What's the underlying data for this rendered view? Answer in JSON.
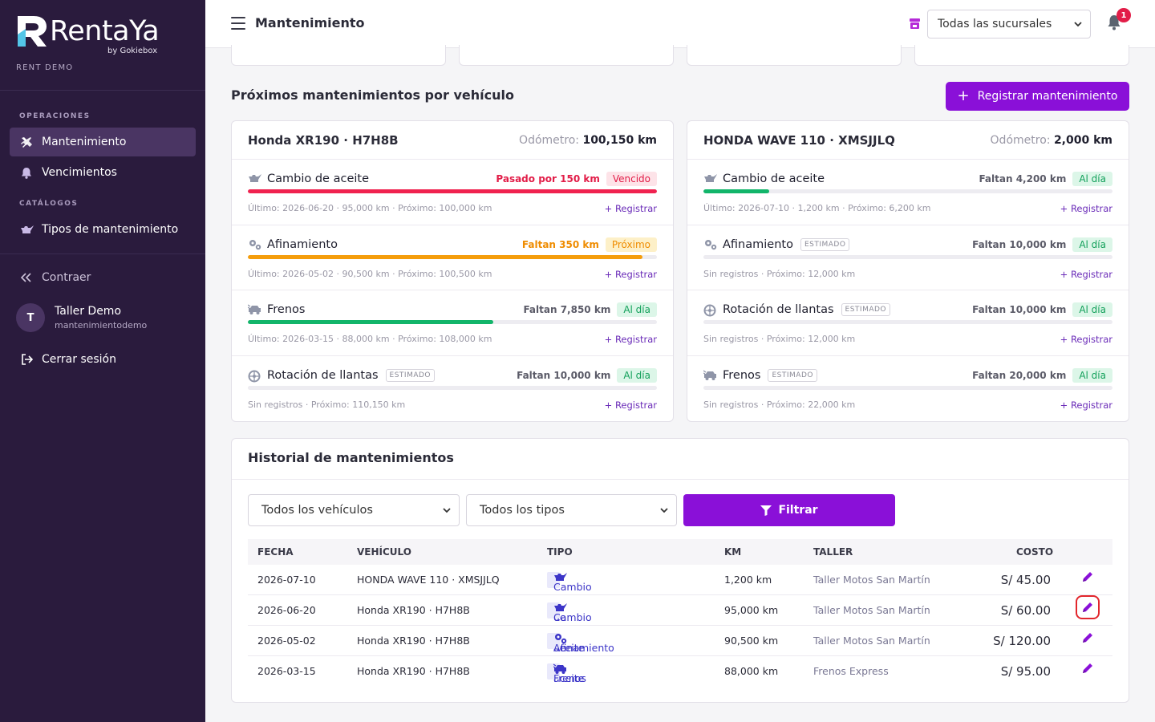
{
  "brand": {
    "name": "RentaYa",
    "by": "by Gokiebox",
    "tenant": "RENT DEMO"
  },
  "sidebar": {
    "section_ops": "OPERACIONES",
    "section_cat": "CATÁLOGOS",
    "items": [
      {
        "label": "Mantenimiento",
        "icon": "tools-icon",
        "active": true
      },
      {
        "label": "Vencimientos",
        "icon": "bell-icon"
      },
      {
        "label": "Tipos de mantenimiento",
        "icon": "oil-can-icon"
      }
    ],
    "collapse_label": "Contraer",
    "user": {
      "initial": "T",
      "name": "Taller Demo",
      "username": "mantenimientodemo"
    },
    "logout_label": "Cerrar sesión"
  },
  "topbar": {
    "title": "Mantenimiento",
    "branch_selected": "Todas las sucursales",
    "notifications": "1"
  },
  "upcoming": {
    "title": "Próximos mantenimientos por vehículo",
    "register_button": "Registrar mantenimiento",
    "register_link": "Registrar",
    "estimated_label": "ESTIMADO",
    "odometer_label": "Odómetro:",
    "vehicles": [
      {
        "name": "Honda XR190 · H7H8B",
        "odometer": "100,150 km",
        "items": [
          {
            "name": "Cambio de aceite",
            "icon": "oil-can-icon",
            "status_text": "Pasado por 150 km",
            "pill": "Vencido",
            "kind": "overdue",
            "progress": 1.0,
            "footer": "Último: 2026-06-20 · 95,000 km · Próximo: 100,000 km",
            "estimated": false
          },
          {
            "name": "Afinamiento",
            "icon": "cogs-icon",
            "status_text": "Faltan 350 km",
            "pill": "Próximo",
            "kind": "soon",
            "progress": 0.965,
            "footer": "Último: 2026-05-02 · 90,500 km · Próximo: 100,500 km",
            "estimated": false
          },
          {
            "name": "Frenos",
            "icon": "car-brake-icon",
            "status_text": "Faltan 7,850 km",
            "pill": "Al día",
            "kind": "ok",
            "progress": 0.6,
            "footer": "Último: 2026-03-15 · 88,000 km · Próximo: 108,000 km",
            "estimated": false
          },
          {
            "name": "Rotación de llantas",
            "icon": "tire-icon",
            "status_text": "Faltan 10,000 km",
            "pill": "Al día",
            "kind": "ok",
            "progress": 0,
            "footer": "Sin registros · Próximo: 110,150 km",
            "estimated": true
          }
        ]
      },
      {
        "name": "HONDA WAVE 110 · XMSJJLQ",
        "odometer": "2,000 km",
        "items": [
          {
            "name": "Cambio de aceite",
            "icon": "oil-can-icon",
            "status_text": "Faltan 4,200 km",
            "pill": "Al día",
            "kind": "ok",
            "progress": 0.16,
            "footer": "Último: 2026-07-10 · 1,200 km · Próximo: 6,200 km",
            "estimated": false
          },
          {
            "name": "Afinamiento",
            "icon": "cogs-icon",
            "status_text": "Faltan 10,000 km",
            "pill": "Al día",
            "kind": "ok",
            "progress": 0,
            "footer": "Sin registros · Próximo: 12,000 km",
            "estimated": true
          },
          {
            "name": "Rotación de llantas",
            "icon": "tire-icon",
            "status_text": "Faltan 10,000 km",
            "pill": "Al día",
            "kind": "ok",
            "progress": 0,
            "footer": "Sin registros · Próximo: 12,000 km",
            "estimated": true
          },
          {
            "name": "Frenos",
            "icon": "car-brake-icon",
            "status_text": "Faltan 20,000 km",
            "pill": "Al día",
            "kind": "ok",
            "progress": 0,
            "footer": "Sin registros · Próximo: 22,000 km",
            "estimated": true
          }
        ]
      }
    ]
  },
  "history": {
    "title": "Historial de mantenimientos",
    "vehicle_filter": "Todos los vehículos",
    "type_filter": "Todos los tipos",
    "filter_button": "Filtrar",
    "columns": [
      "FECHA",
      "VEHÍCULO",
      "TIPO",
      "KM",
      "TALLER",
      "COSTO"
    ],
    "rows": [
      {
        "date": "2026-07-10",
        "vehicle": "HONDA WAVE 110 · XMSJJLQ",
        "type": "Cambio de aceite",
        "type_icon": "oil-can-icon",
        "km": "1,200 km",
        "shop": "Taller Motos San Martín",
        "cost": "S/ 45.00"
      },
      {
        "date": "2026-06-20",
        "vehicle": "Honda XR190 · H7H8B",
        "type": "Cambio de aceite",
        "type_icon": "oil-can-icon",
        "km": "95,000 km",
        "shop": "Taller Motos San Martín",
        "cost": "S/ 60.00",
        "focused": true
      },
      {
        "date": "2026-05-02",
        "vehicle": "Honda XR190 · H7H8B",
        "type": "Afinamiento",
        "type_icon": "cogs-icon",
        "km": "90,500 km",
        "shop": "Taller Motos San Martín",
        "cost": "S/ 120.00"
      },
      {
        "date": "2026-03-15",
        "vehicle": "Honda XR190 · H7H8B",
        "type": "Frenos",
        "type_icon": "car-brake-icon",
        "km": "88,000 km",
        "shop": "Frenos Express",
        "cost": "S/ 95.00"
      }
    ]
  },
  "colors": {
    "primary": "#8a10d8",
    "sidebar": "#2a1b3d",
    "overdue_text": "#e21d48",
    "overdue_bg": "#fde3e8",
    "overdue_bar": "#f0224f",
    "soon_text": "#ef8c00",
    "soon_bg": "#fdf0c8",
    "soon_bar": "#f59d0b",
    "ok_text": "#12a05a",
    "ok_bg": "#dcf6e8",
    "ok_bar": "#12b56a"
  }
}
